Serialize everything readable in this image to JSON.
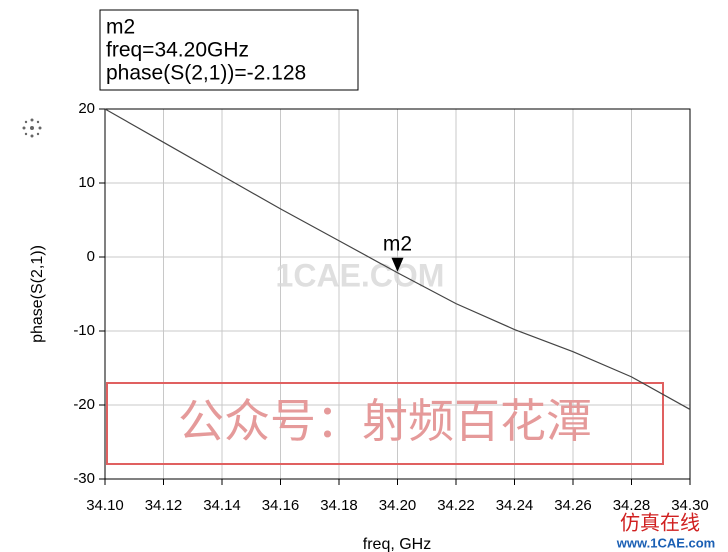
{
  "chart_data": {
    "type": "line",
    "x": [
      34.1,
      34.12,
      34.14,
      34.16,
      34.18,
      34.2,
      34.22,
      34.24,
      34.26,
      34.28,
      34.3
    ],
    "values": [
      20,
      15.5,
      11,
      6.5,
      2.2,
      -2.128,
      -6.3,
      -9.8,
      -12.8,
      -16.2,
      -20.6
    ],
    "color": "#444444",
    "xlabel": "freq, GHz",
    "ylabel": "phase(S(2,1))",
    "xlim": [
      34.1,
      34.3
    ],
    "xticks": [
      {
        "value": 34.1,
        "label": "34.10"
      },
      {
        "value": 34.12,
        "label": "34.12"
      },
      {
        "value": 34.14,
        "label": "34.14"
      },
      {
        "value": 34.16,
        "label": "34.16"
      },
      {
        "value": 34.18,
        "label": "34.18"
      },
      {
        "value": 34.2,
        "label": "34.20"
      },
      {
        "value": 34.22,
        "label": "34.22"
      },
      {
        "value": 34.24,
        "label": "34.24"
      },
      {
        "value": 34.26,
        "label": "34.26"
      },
      {
        "value": 34.28,
        "label": "34.28"
      },
      {
        "value": 34.3,
        "label": "34.30"
      }
    ],
    "ylim": [
      -30,
      20
    ],
    "yticks": [
      20,
      10,
      0,
      -10,
      -20,
      -30
    ],
    "grid": true,
    "marker": {
      "name": "m2",
      "x": 34.2,
      "y": -2.128,
      "readout": [
        "freq=34.20GHz",
        "phase(S(2,1))=-2.128"
      ]
    }
  },
  "watermarks": [
    "公众号：射频百花潭",
    "1CAE.COM",
    "仿真在线",
    "www.1CAE.com"
  ]
}
